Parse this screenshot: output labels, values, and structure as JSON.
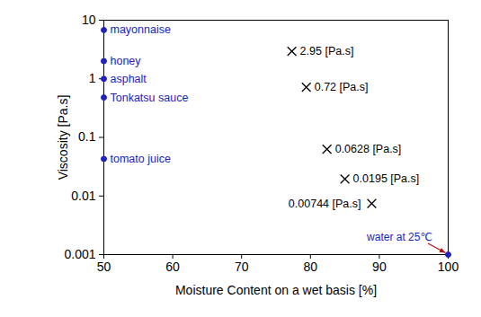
{
  "chart_data": {
    "type": "scatter",
    "xlabel": "Moisture Content on a wet basis [%]",
    "ylabel": "Viscosity [Pa.s]",
    "xlim": [
      50,
      100
    ],
    "ylim": [
      0.001,
      10
    ],
    "xticks": [
      50,
      60,
      70,
      80,
      90,
      100
    ],
    "yticks": [
      0.001,
      0.01,
      0.1,
      1,
      10
    ],
    "log": "y",
    "grid": false,
    "series": [
      {
        "color": "#2222bb",
        "marker": "circle",
        "x": [
          50,
          50,
          50,
          50,
          50,
          100
        ],
        "values": [
          6.8,
          2,
          1,
          0.48,
          0.043,
          0.001
        ],
        "labels": [
          "mayonnaise",
          "honey",
          "asphalt",
          "Tonkatsu sauce",
          "tomato juice",
          "water at 25℃"
        ]
      },
      {
        "color": "#000000",
        "marker": "times",
        "x": [
          77.3,
          79.4,
          82.4,
          85,
          88.9
        ],
        "values": [
          2.95,
          0.72,
          0.0628,
          0.0195,
          0.00744
        ],
        "data_labels": true,
        "value_labels": [
          "2.95 [Pa.s]",
          "0.72 [Pa.s]",
          "0.0628 [Pa.s]",
          "0.0195 [Pa.s]",
          "0.00744 [Pa.s]"
        ]
      }
    ]
  }
}
